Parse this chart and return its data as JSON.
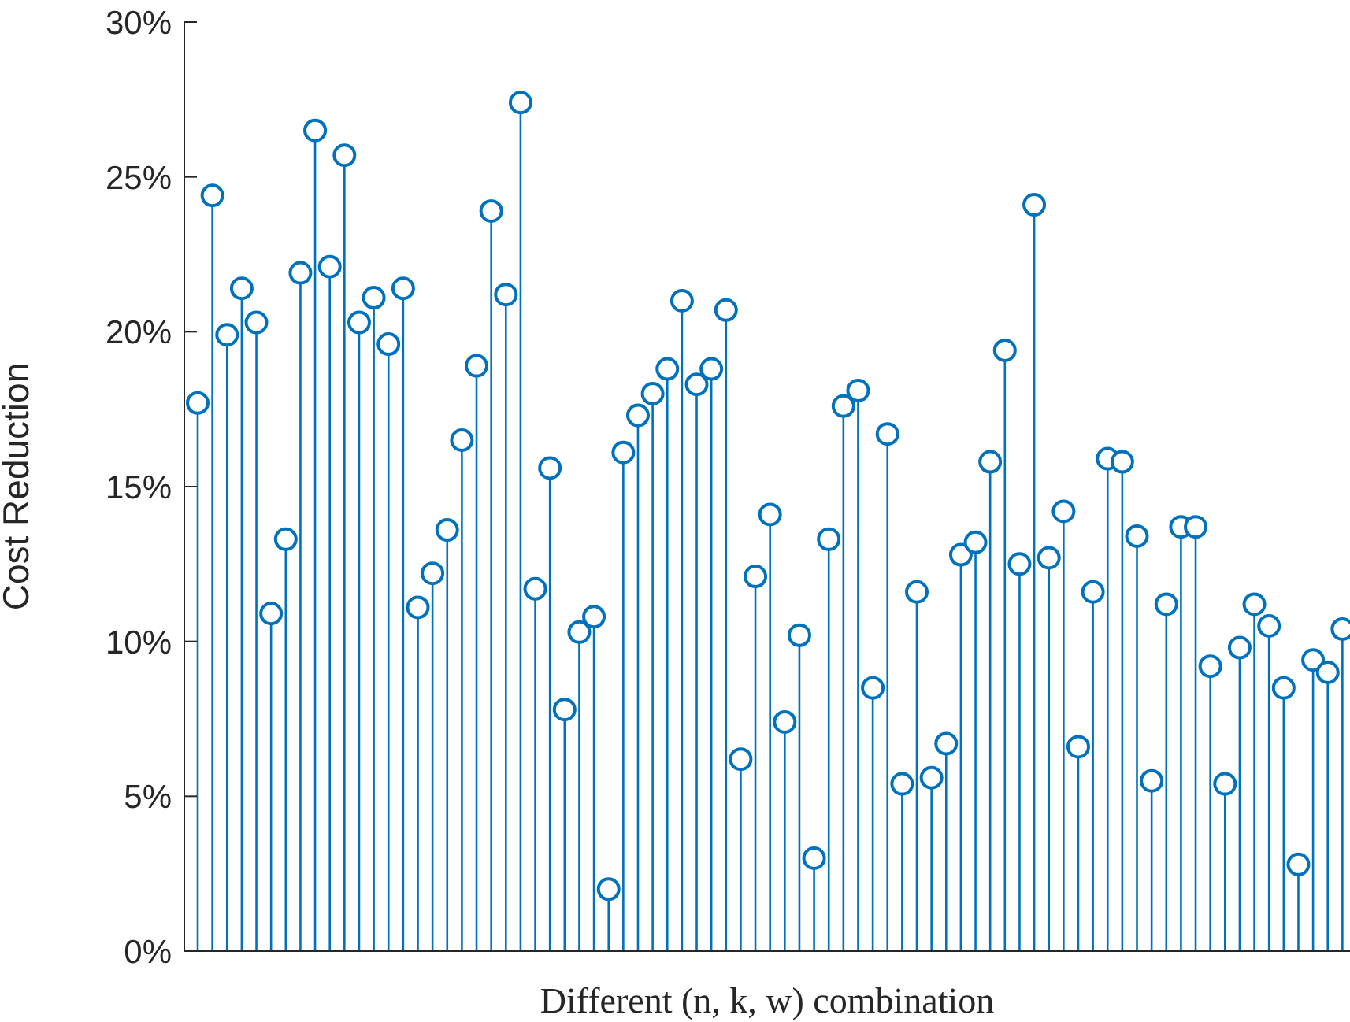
{
  "chart_data": {
    "type": "lollipop",
    "xlabel": "Different (n, k, w) combination",
    "ylabel": "Cost Reduction",
    "marker": "circle",
    "color": "#0072bd",
    "tick_labels": "y",
    "grid": false,
    "legend": false,
    "categories": [
      null,
      null,
      null,
      null,
      null,
      null,
      null,
      null,
      null,
      null,
      null,
      null,
      null,
      null,
      null,
      null,
      null,
      null,
      null,
      null,
      null,
      null,
      null,
      null,
      null,
      null,
      null,
      null,
      null,
      null,
      null,
      null,
      null,
      null,
      null,
      null,
      null,
      null,
      null,
      null,
      null,
      null,
      null,
      null,
      null,
      null,
      null,
      null,
      null,
      null,
      null,
      null,
      null,
      null,
      null,
      null,
      null,
      null,
      null,
      null,
      null,
      null,
      null,
      null,
      null,
      null,
      null,
      null,
      null,
      null,
      null,
      null,
      null,
      null,
      null,
      null,
      null,
      null,
      null
    ],
    "values": [
      17.7,
      24.4,
      19.9,
      21.4,
      20.3,
      10.9,
      13.3,
      21.9,
      26.5,
      22.1,
      25.7,
      20.3,
      21.1,
      19.6,
      21.4,
      11.1,
      12.2,
      13.6,
      16.5,
      18.9,
      23.9,
      21.2,
      27.4,
      11.7,
      15.6,
      7.8,
      10.3,
      10.8,
      2.0,
      16.1,
      17.3,
      18.0,
      18.8,
      21.0,
      18.3,
      18.8,
      20.7,
      6.2,
      12.1,
      14.1,
      7.4,
      10.2,
      3.0,
      13.3,
      17.6,
      18.1,
      8.5,
      16.7,
      5.4,
      11.6,
      5.6,
      6.7,
      12.8,
      13.2,
      15.8,
      19.4,
      12.5,
      24.1,
      12.7,
      14.2,
      6.6,
      11.6,
      15.9,
      15.8,
      13.4,
      5.5,
      11.2,
      13.7,
      13.7,
      9.2,
      5.4,
      9.8,
      11.2,
      10.5,
      8.5,
      2.8,
      9.4,
      9.0,
      10.4
    ],
    "ylim": [
      0,
      30
    ],
    "yticks": [
      {
        "value": 0,
        "label": "0%"
      },
      {
        "value": 5,
        "label": "5%"
      },
      {
        "value": 10,
        "label": "10%"
      },
      {
        "value": 15,
        "label": "15%"
      },
      {
        "value": 20,
        "label": "20%"
      },
      {
        "value": 25,
        "label": "25%"
      },
      {
        "value": 30,
        "label": "30%"
      }
    ]
  }
}
